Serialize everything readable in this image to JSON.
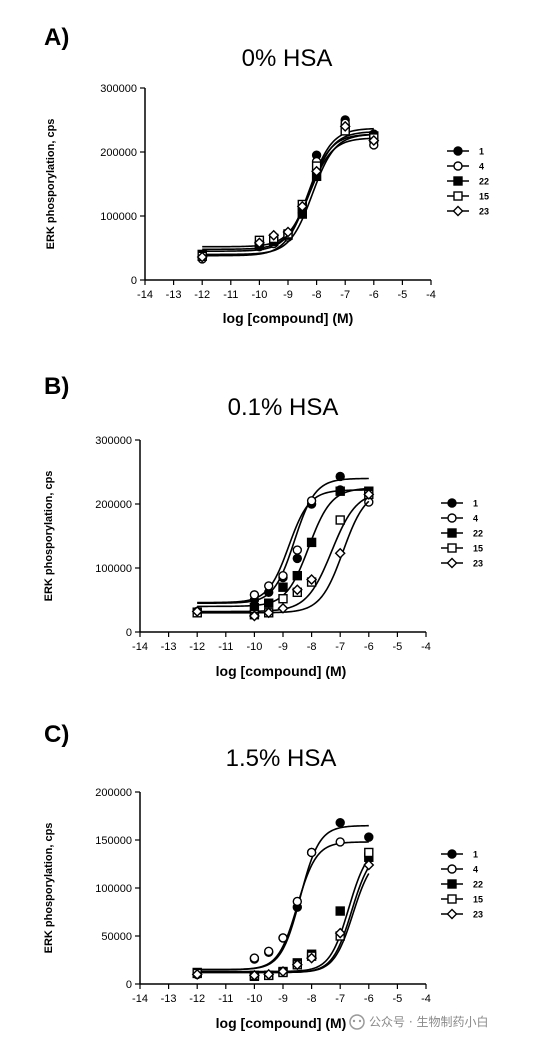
{
  "watermark": "公众号 · 生物制药小白",
  "chart_data": [
    {
      "panel": "A)",
      "type": "scatter",
      "title": "0% HSA",
      "xlabel": "log [compound] (M)",
      "ylabel": "ERK phosporylation, cps",
      "xlim": [
        -14,
        -4
      ],
      "ylim": [
        0,
        300000
      ],
      "xticks": [
        -14,
        -13,
        -12,
        -11,
        -10,
        -9,
        -8,
        -7,
        -6,
        -5,
        -4
      ],
      "yticks": [
        0,
        100000,
        200000,
        300000
      ],
      "legend_position": "right",
      "series": [
        {
          "name": "1",
          "marker": "circle-filled",
          "points": [
            [
              -12,
              38000
            ],
            [
              -10,
              57000
            ],
            [
              -9.5,
              62000
            ],
            [
              -9,
              72000
            ],
            [
              -8.5,
              110000
            ],
            [
              -8,
              195000
            ],
            [
              -7,
              250000
            ],
            [
              -6,
              228000
            ]
          ],
          "fit": {
            "bottom": 45000,
            "top": 237000,
            "logEC50": -8.25,
            "hill": 1.1
          }
        },
        {
          "name": "4",
          "marker": "circle-open",
          "points": [
            [
              -12,
              33000
            ],
            [
              -10,
              52000
            ],
            [
              -9.5,
              57000
            ],
            [
              -9,
              67000
            ],
            [
              -8.5,
              105000
            ],
            [
              -8,
              185000
            ],
            [
              -7,
              245000
            ],
            [
              -6,
              211000
            ]
          ],
          "fit": {
            "bottom": 38000,
            "top": 228000,
            "logEC50": -8.3,
            "hill": 1.1
          }
        },
        {
          "name": "22",
          "marker": "square-filled",
          "points": [
            [
              -12,
              40000
            ],
            [
              -10,
              54000
            ],
            [
              -9.5,
              60000
            ],
            [
              -9,
              70000
            ],
            [
              -8.5,
              103000
            ],
            [
              -8,
              162000
            ],
            [
              -7,
              236000
            ],
            [
              -6,
              225000
            ]
          ],
          "fit": {
            "bottom": 40000,
            "top": 228000,
            "logEC50": -8.15,
            "hill": 1.1
          }
        },
        {
          "name": "15",
          "marker": "square-open",
          "points": [
            [
              -12,
              37000
            ],
            [
              -10,
              62000
            ],
            [
              -9.5,
              65000
            ],
            [
              -9,
              72000
            ],
            [
              -8.5,
              118000
            ],
            [
              -8,
              178000
            ],
            [
              -7,
              233000
            ],
            [
              -6,
              222000
            ]
          ],
          "fit": {
            "bottom": 52000,
            "top": 232000,
            "logEC50": -8.2,
            "hill": 1.1
          }
        },
        {
          "name": "23",
          "marker": "diamond-open",
          "points": [
            [
              -12,
              36000
            ],
            [
              -10,
              58000
            ],
            [
              -9.5,
              70000
            ],
            [
              -9,
              75000
            ],
            [
              -8.5,
              115000
            ],
            [
              -8,
              170000
            ],
            [
              -7,
              240000
            ],
            [
              -6,
              218000
            ]
          ],
          "fit": {
            "bottom": 48000,
            "top": 222000,
            "logEC50": -8.25,
            "hill": 1.1
          }
        }
      ]
    },
    {
      "panel": "B)",
      "type": "scatter",
      "title": "0.1% HSA",
      "xlabel": "log [compound] (M)",
      "ylabel": "ERK phosporylation, cps",
      "xlim": [
        -14,
        -4
      ],
      "ylim": [
        0,
        300000
      ],
      "xticks": [
        -14,
        -13,
        -12,
        -11,
        -10,
        -9,
        -8,
        -7,
        -6,
        -5,
        -4
      ],
      "yticks": [
        0,
        100000,
        200000,
        300000
      ],
      "legend_position": "right",
      "series": [
        {
          "name": "1",
          "marker": "circle-filled",
          "points": [
            [
              -12,
              32000
            ],
            [
              -10,
              50000
            ],
            [
              -9.5,
              62000
            ],
            [
              -9,
              85000
            ],
            [
              -8.5,
              115000
            ],
            [
              -8,
              200000
            ],
            [
              -7,
              243000
            ],
            [
              -6,
              218000
            ]
          ],
          "fit": {
            "bottom": 45000,
            "top": 240000,
            "logEC50": -8.6,
            "hill": 1.2
          }
        },
        {
          "name": "4",
          "marker": "circle-open",
          "points": [
            [
              -12,
              32000
            ],
            [
              -10,
              58000
            ],
            [
              -9.5,
              72000
            ],
            [
              -9,
              88000
            ],
            [
              -8.5,
              128000
            ],
            [
              -8,
              205000
            ],
            [
              -7,
              222000
            ],
            [
              -6,
              203000
            ]
          ],
          "fit": {
            "bottom": 46000,
            "top": 222000,
            "logEC50": -8.8,
            "hill": 1.2
          }
        },
        {
          "name": "22",
          "marker": "square-filled",
          "points": [
            [
              -12,
              31000
            ],
            [
              -10,
              38000
            ],
            [
              -9.5,
              45000
            ],
            [
              -9,
              70000
            ],
            [
              -8.5,
              88000
            ],
            [
              -8,
              140000
            ],
            [
              -7,
              220000
            ],
            [
              -6,
              220000
            ]
          ],
          "fit": {
            "bottom": 40000,
            "top": 225000,
            "logEC50": -8.1,
            "hill": 1.1
          }
        },
        {
          "name": "15",
          "marker": "square-open",
          "points": [
            [
              -12,
              30000
            ],
            [
              -10,
              27000
            ],
            [
              -9.5,
              30000
            ],
            [
              -9,
              52000
            ],
            [
              -8.5,
              62000
            ],
            [
              -8,
              78000
            ],
            [
              -7,
              175000
            ],
            [
              -6,
              215000
            ]
          ],
          "fit": {
            "bottom": 32000,
            "top": 220000,
            "logEC50": -7.3,
            "hill": 1.0
          }
        },
        {
          "name": "23",
          "marker": "diamond-open",
          "points": [
            [
              -12,
              32000
            ],
            [
              -10,
              25000
            ],
            [
              -9.5,
              30000
            ],
            [
              -9,
              37000
            ],
            [
              -8.5,
              66000
            ],
            [
              -8,
              82000
            ],
            [
              -7,
              123000
            ],
            [
              -6,
              215000
            ]
          ],
          "fit": {
            "bottom": 30000,
            "top": 222000,
            "logEC50": -6.9,
            "hill": 1.1
          }
        }
      ]
    },
    {
      "panel": "C)",
      "type": "scatter",
      "title": "1.5% HSA",
      "xlabel": "log [compound] (M)",
      "ylabel": "ERK phosporylation, cps",
      "xlim": [
        -14,
        -4
      ],
      "ylim": [
        0,
        200000
      ],
      "xticks": [
        -14,
        -13,
        -12,
        -11,
        -10,
        -9,
        -8,
        -7,
        -6,
        -5,
        -4
      ],
      "yticks": [
        0,
        50000,
        100000,
        150000,
        200000
      ],
      "legend_position": "right",
      "series": [
        {
          "name": "1",
          "marker": "circle-filled",
          "points": [
            [
              -12,
              10000
            ],
            [
              -10,
              26000
            ],
            [
              -9.5,
              33000
            ],
            [
              -9,
              48000
            ],
            [
              -8.5,
              80000
            ],
            [
              -8,
              137000
            ],
            [
              -7,
              168000
            ],
            [
              -6,
              153000
            ]
          ],
          "fit": {
            "bottom": 15000,
            "top": 165000,
            "logEC50": -8.4,
            "hill": 1.3
          }
        },
        {
          "name": "4",
          "marker": "circle-open",
          "points": [
            [
              -12,
              11000
            ],
            [
              -10,
              27000
            ],
            [
              -9.5,
              34000
            ],
            [
              -9,
              48000
            ],
            [
              -8.5,
              86000
            ],
            [
              -8,
              137000
            ],
            [
              -7,
              148000
            ],
            [
              -6,
              136000
            ]
          ],
          "fit": {
            "bottom": 15000,
            "top": 148000,
            "logEC50": -8.5,
            "hill": 1.3
          }
        },
        {
          "name": "22",
          "marker": "square-filled",
          "points": [
            [
              -12,
              12000
            ],
            [
              -10,
              8000
            ],
            [
              -9.5,
              9000
            ],
            [
              -9,
              13000
            ],
            [
              -8.5,
              22000
            ],
            [
              -8,
              31000
            ],
            [
              -7,
              76000
            ],
            [
              -6,
              132000
            ]
          ],
          "fit": {
            "bottom": 13000,
            "top": 145000,
            "logEC50": -6.7,
            "hill": 1.3
          }
        },
        {
          "name": "15",
          "marker": "square-open",
          "points": [
            [
              -12,
              11000
            ],
            [
              -10,
              9000
            ],
            [
              -9.5,
              9000
            ],
            [
              -9,
              12000
            ],
            [
              -8.5,
              20000
            ],
            [
              -8,
              29000
            ],
            [
              -7,
              50000
            ],
            [
              -6,
              137000
            ]
          ],
          "fit": {
            "bottom": 12000,
            "top": 140000,
            "logEC50": -6.6,
            "hill": 1.3
          }
        },
        {
          "name": "23",
          "marker": "diamond-open",
          "points": [
            [
              -12,
              10000
            ],
            [
              -10,
              9000
            ],
            [
              -9.5,
              10000
            ],
            [
              -9,
              13000
            ],
            [
              -8.5,
              20000
            ],
            [
              -8,
              27000
            ],
            [
              -7,
              53000
            ],
            [
              -6,
              124000
            ]
          ],
          "fit": {
            "bottom": 12000,
            "top": 135000,
            "logEC50": -6.55,
            "hill": 1.3
          }
        }
      ]
    }
  ]
}
